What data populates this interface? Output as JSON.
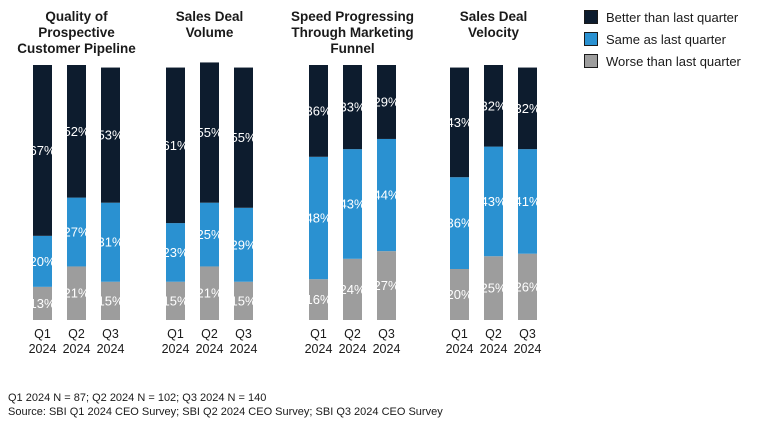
{
  "legend": [
    {
      "label": "Better than last quarter",
      "color": "#0d1c2e"
    },
    {
      "label": "Same as last quarter",
      "color": "#2a91d1"
    },
    {
      "label": "Worse than last quarter",
      "color": "#9d9d9d"
    }
  ],
  "footnotes": {
    "n": "Q1 2024 N = 87; Q2 2024 N = 102; Q3 2024 N = 140",
    "source": "Source: SBI Q1 2024 CEO Survey; SBI Q2 2024 CEO Survey; SBI Q3 2024 CEO Survey"
  },
  "chart_data": {
    "type": "bar",
    "stacked": true,
    "percent": true,
    "categories": [
      [
        "Q1",
        "2024"
      ],
      [
        "Q2",
        "2024"
      ],
      [
        "Q3",
        "2024"
      ]
    ],
    "series_names": [
      "Better than last quarter",
      "Same as last quarter",
      "Worse than last quarter"
    ],
    "panels": [
      {
        "title": [
          "Quality of",
          "Prospective",
          "Customer Pipeline"
        ],
        "values": {
          "better": [
            67,
            52,
            53
          ],
          "same": [
            20,
            27,
            31
          ],
          "worse": [
            13,
            21,
            15
          ]
        }
      },
      {
        "title": [
          "Sales Deal",
          "Volume"
        ],
        "values": {
          "better": [
            61,
            55,
            55
          ],
          "same": [
            23,
            25,
            29
          ],
          "worse": [
            15,
            21,
            15
          ]
        }
      },
      {
        "title": [
          "Speed Progressing",
          "Through Marketing",
          "Funnel"
        ],
        "values": {
          "better": [
            36,
            33,
            29
          ],
          "same": [
            48,
            43,
            44
          ],
          "worse": [
            16,
            24,
            27
          ]
        }
      },
      {
        "title": [
          "Sales Deal",
          "Velocity"
        ],
        "values": {
          "better": [
            43,
            32,
            32
          ],
          "same": [
            36,
            43,
            41
          ],
          "worse": [
            20,
            25,
            26
          ]
        }
      }
    ]
  }
}
